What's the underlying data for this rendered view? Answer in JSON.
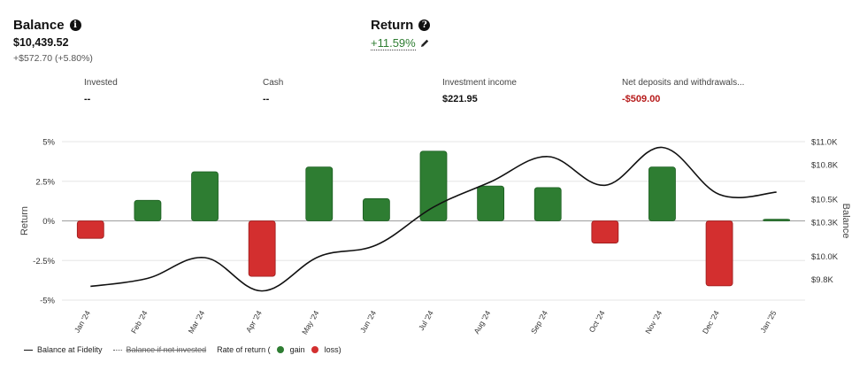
{
  "balance": {
    "title": "Balance",
    "value": "$10,439.52",
    "change": "+$572.70 (+5.80%)"
  },
  "return": {
    "title": "Return",
    "value": "+11.59%"
  },
  "metrics": [
    {
      "label": "Invested",
      "value": "--"
    },
    {
      "label": "Cash",
      "value": "--"
    },
    {
      "label": "Investment income",
      "value": "$221.95"
    },
    {
      "label": "Net deposits and withdrawals...",
      "value": "-$509.00"
    }
  ],
  "legend": {
    "balance": "Balance at Fidelity",
    "not_invested": "Balance if not invested",
    "rate_prefix": "Rate of return (",
    "gain": "gain",
    "loss": "loss)"
  },
  "colors": {
    "gain": "#2e7d32",
    "loss": "#d32f2f",
    "line": "#111111"
  },
  "chart_data": {
    "type": "bar",
    "categories": [
      "Jan '24",
      "Feb '24",
      "Mar '24",
      "Apr '24",
      "May '24",
      "Jun '24",
      "Jul '24",
      "Aug '24",
      "Sep '24",
      "Oct '24",
      "Nov '24",
      "Dec '24",
      "Jan '25"
    ],
    "series": [
      {
        "values": [
          -1.1,
          1.3,
          3.1,
          -3.5,
          3.4,
          1.4,
          4.4,
          2.2,
          2.1,
          -1.4,
          3.4,
          -4.1,
          0.1
        ],
        "axis": "left"
      },
      {
        "type": "line",
        "axis": "right",
        "values": [
          9740,
          9810,
          9990,
          9700,
          10000,
          10100,
          10430,
          10650,
          10870,
          10620,
          10950,
          10540,
          10560
        ]
      }
    ],
    "ylabel": "Return",
    "y2label": "Balance",
    "ylim": [
      -5,
      5
    ],
    "y2lim": [
      9620,
      11000
    ],
    "yticks": [
      "5%",
      "2.5%",
      "0%",
      "-2.5%",
      "-5%"
    ],
    "y2ticks": [
      "$11.0K",
      "$10.8K",
      "$10.5K",
      "$10.3K",
      "$10.0K",
      "$9.8K"
    ],
    "grid": true
  }
}
